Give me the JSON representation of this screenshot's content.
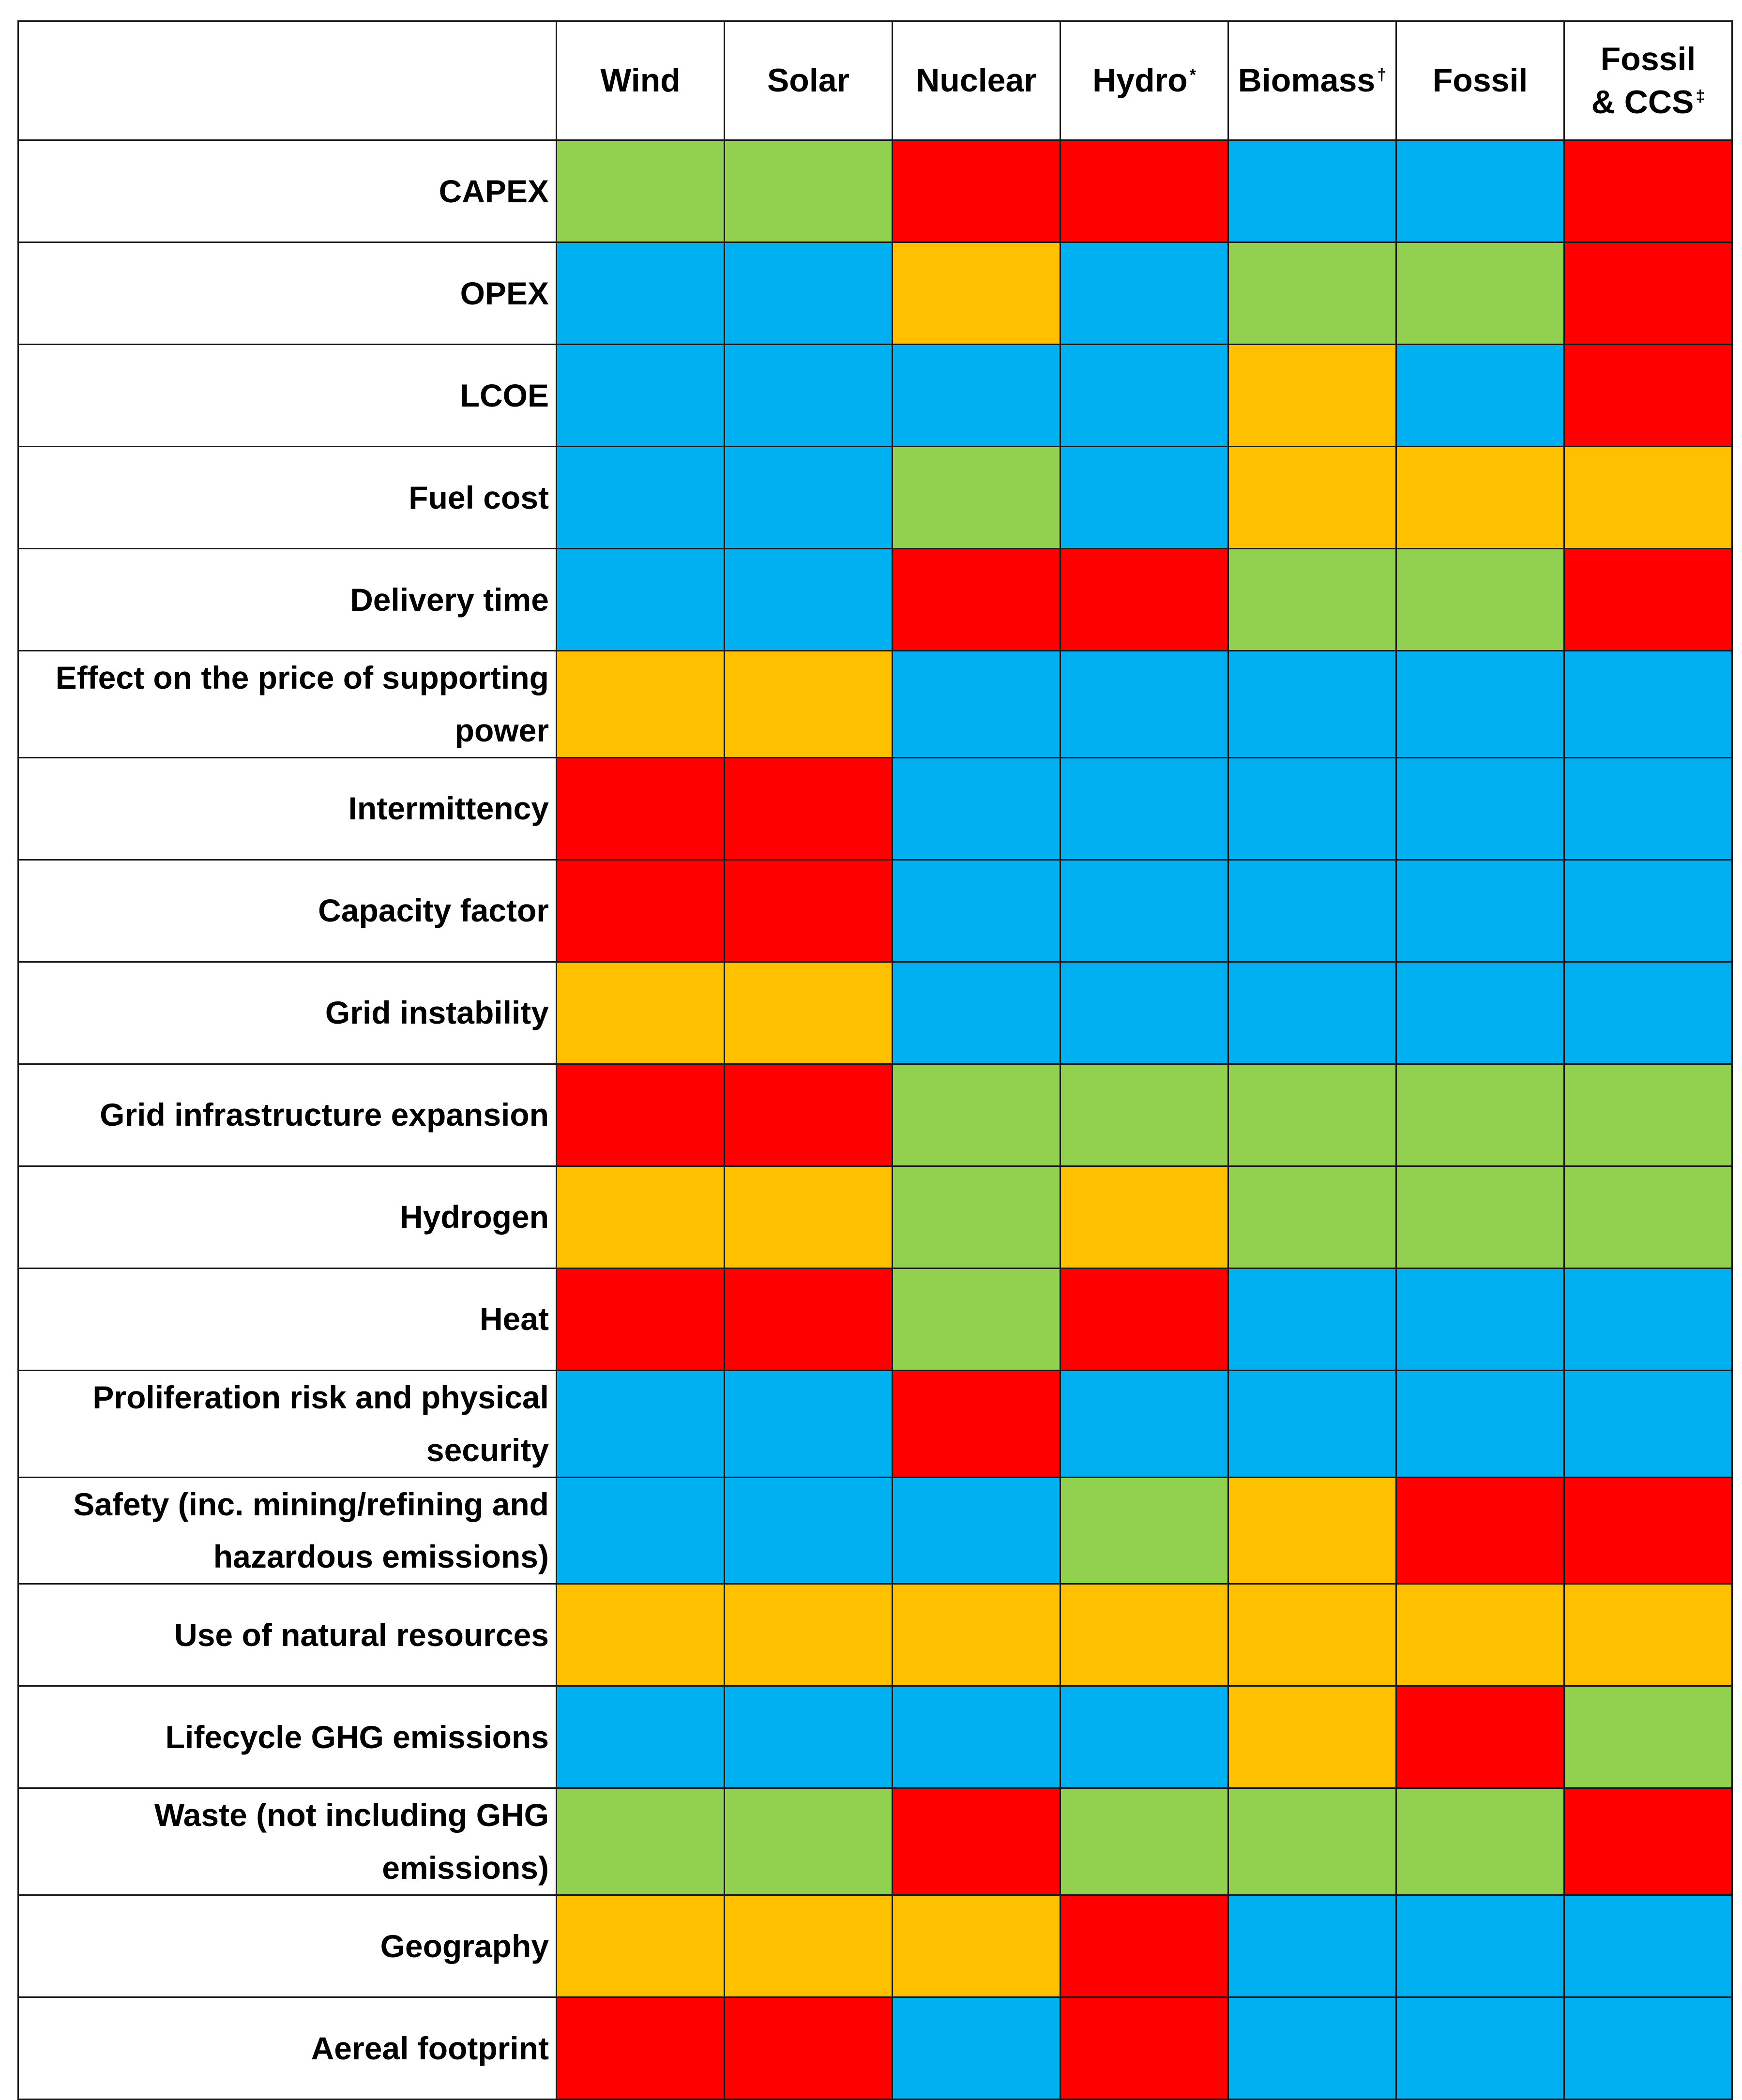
{
  "chart_data": {
    "type": "heatmap",
    "title": "",
    "colors": {
      "green": "#92D050",
      "blue": "#00B0F0",
      "yellow": "#FFC000",
      "red": "#FF0000"
    },
    "columns": [
      {
        "label": "Wind",
        "mark": ""
      },
      {
        "label": "Solar",
        "mark": ""
      },
      {
        "label": "Nuclear",
        "mark": ""
      },
      {
        "label": "Hydro",
        "mark": "*"
      },
      {
        "label": "Biomass",
        "mark": "†"
      },
      {
        "label": "Fossil",
        "mark": ""
      },
      {
        "label": "Fossil & CCS",
        "mark": "‡"
      }
    ],
    "rows": [
      {
        "label": "CAPEX",
        "values": [
          "green",
          "green",
          "red",
          "red",
          "blue",
          "blue",
          "red"
        ]
      },
      {
        "label": "OPEX",
        "values": [
          "blue",
          "blue",
          "yellow",
          "blue",
          "green",
          "green",
          "red"
        ]
      },
      {
        "label": "LCOE",
        "values": [
          "blue",
          "blue",
          "blue",
          "blue",
          "yellow",
          "blue",
          "red"
        ]
      },
      {
        "label": "Fuel cost",
        "values": [
          "blue",
          "blue",
          "green",
          "blue",
          "yellow",
          "yellow",
          "yellow"
        ]
      },
      {
        "label": "Delivery time",
        "values": [
          "blue",
          "blue",
          "red",
          "red",
          "green",
          "green",
          "red"
        ]
      },
      {
        "label": "Effect on the price of supporting power",
        "values": [
          "yellow",
          "yellow",
          "blue",
          "blue",
          "blue",
          "blue",
          "blue"
        ]
      },
      {
        "label": "Intermittency",
        "values": [
          "red",
          "red",
          "blue",
          "blue",
          "blue",
          "blue",
          "blue"
        ]
      },
      {
        "label": "Capacity factor",
        "values": [
          "red",
          "red",
          "blue",
          "blue",
          "blue",
          "blue",
          "blue"
        ]
      },
      {
        "label": "Grid instability",
        "values": [
          "yellow",
          "yellow",
          "blue",
          "blue",
          "blue",
          "blue",
          "blue"
        ]
      },
      {
        "label": "Grid infrastructure expansion",
        "values": [
          "red",
          "red",
          "green",
          "green",
          "green",
          "green",
          "green"
        ]
      },
      {
        "label": "Hydrogen",
        "values": [
          "yellow",
          "yellow",
          "green",
          "yellow",
          "green",
          "green",
          "green"
        ]
      },
      {
        "label": "Heat",
        "values": [
          "red",
          "red",
          "green",
          "red",
          "blue",
          "blue",
          "blue"
        ]
      },
      {
        "label": "Proliferation risk and physical security",
        "values": [
          "blue",
          "blue",
          "red",
          "blue",
          "blue",
          "blue",
          "blue"
        ]
      },
      {
        "label": "Safety (inc. mining/refining and hazardous emissions)",
        "values": [
          "blue",
          "blue",
          "blue",
          "green",
          "yellow",
          "red",
          "red"
        ]
      },
      {
        "label": "Use of natural resources",
        "values": [
          "yellow",
          "yellow",
          "yellow",
          "yellow",
          "yellow",
          "yellow",
          "yellow"
        ]
      },
      {
        "label": "Lifecycle GHG emissions",
        "values": [
          "blue",
          "blue",
          "blue",
          "blue",
          "yellow",
          "red",
          "green"
        ]
      },
      {
        "label": "Waste (not including GHG emissions)",
        "values": [
          "green",
          "green",
          "red",
          "green",
          "green",
          "green",
          "red"
        ]
      },
      {
        "label": "Geography",
        "values": [
          "yellow",
          "yellow",
          "yellow",
          "red",
          "blue",
          "blue",
          "blue"
        ]
      },
      {
        "label": "Aereal footprint",
        "values": [
          "red",
          "red",
          "blue",
          "red",
          "blue",
          "blue",
          "blue"
        ]
      }
    ]
  }
}
